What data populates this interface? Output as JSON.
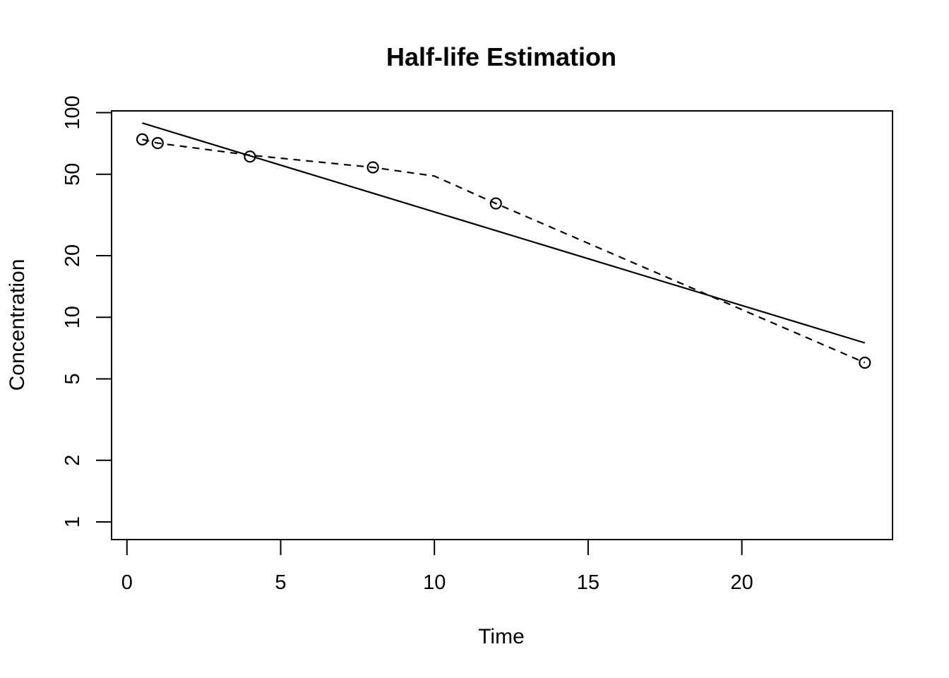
{
  "chart_data": {
    "type": "line",
    "title": "Half-life Estimation",
    "xlabel": "Time",
    "ylabel": "Concentration",
    "y_scale": "log",
    "xlim": [
      -0.5,
      24.9
    ],
    "ylim": [
      0.82,
      102
    ],
    "x_ticks": [
      0,
      5,
      10,
      15,
      20
    ],
    "y_ticks": [
      1,
      2,
      5,
      10,
      20,
      50,
      100
    ],
    "grid": false,
    "legend": "none",
    "series": [
      {
        "style": "points",
        "x": [
          0.5,
          1,
          4,
          8,
          12,
          24
        ],
        "y": [
          74,
          71,
          61,
          54,
          36,
          6
        ]
      },
      {
        "style": "dashed-line",
        "x": [
          0.5,
          1,
          4,
          8,
          10,
          12,
          24
        ],
        "y": [
          74,
          71,
          62,
          54,
          49,
          36,
          6
        ]
      },
      {
        "style": "solid-line",
        "x": [
          0.5,
          24
        ],
        "y": [
          89,
          7.5
        ]
      }
    ]
  }
}
